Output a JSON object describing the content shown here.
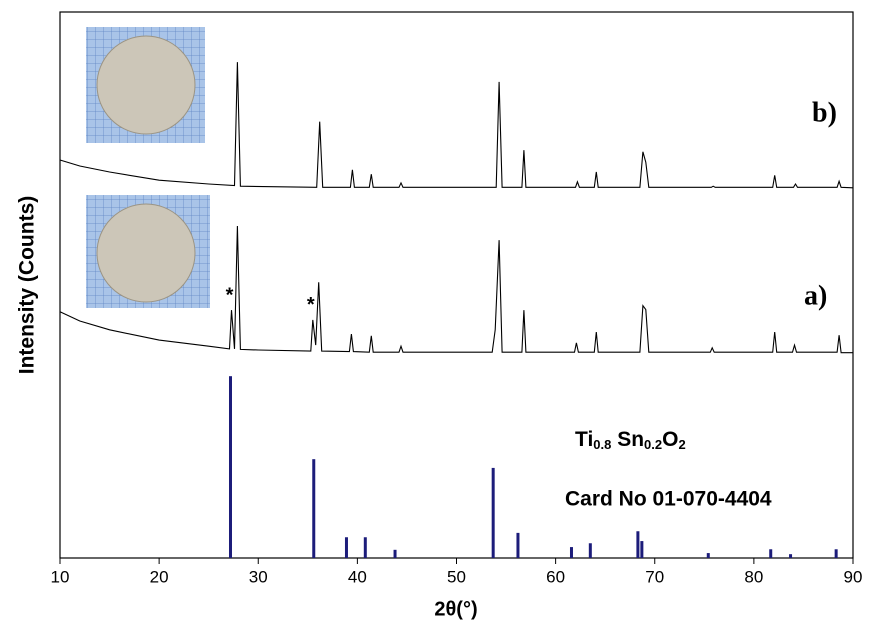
{
  "chart_data": {
    "type": "line",
    "y_label": "Intensity (Counts)",
    "x_label": "2θ(°)",
    "xlim": [
      10,
      90
    ],
    "xticks": [
      10,
      20,
      30,
      40,
      50,
      60,
      70,
      80,
      90
    ],
    "ylim": [
      0,
      100
    ],
    "series": [
      {
        "name": "b)",
        "color": "#000000",
        "x": [
          10,
          12,
          15,
          20,
          25,
          27.6,
          27.9,
          28.2,
          35.9,
          36.2,
          36.5,
          39.3,
          39.5,
          39.7,
          41.2,
          41.4,
          41.6,
          44.2,
          44.4,
          44.6,
          54.0,
          54.3,
          54.6,
          56.6,
          56.8,
          57.0,
          62.0,
          62.2,
          62.4,
          63.9,
          64.1,
          64.3,
          68.5,
          68.8,
          69.1,
          69.4,
          75.7,
          75.9,
          76.1,
          81.9,
          82.1,
          82.3,
          84.0,
          84.2,
          84.4,
          88.4,
          88.6,
          88.8,
          90
        ],
        "values": [
          72.9,
          71.8,
          70.7,
          69.2,
          68.5,
          68.2,
          90.8,
          68.1,
          67.9,
          79.9,
          67.9,
          67.9,
          71.1,
          67.9,
          67.9,
          70.3,
          67.9,
          67.9,
          68.7,
          67.9,
          67.9,
          87.2,
          67.9,
          67.9,
          74.7,
          67.9,
          67.9,
          68.9,
          67.9,
          67.9,
          70.7,
          67.9,
          67.9,
          74.4,
          72.5,
          67.9,
          67.9,
          68.1,
          67.9,
          67.9,
          70.1,
          67.9,
          67.9,
          68.5,
          67.9,
          67.9,
          69.0,
          67.9,
          67.8
        ]
      },
      {
        "name": "a)",
        "color": "#000000",
        "x": [
          10,
          12,
          15,
          20,
          25,
          27.1,
          27.3,
          27.6,
          27.9,
          28.2,
          30,
          35.3,
          35.5,
          35.8,
          36.1,
          36.4,
          39.2,
          39.4,
          39.6,
          41.2,
          41.4,
          41.6,
          44.2,
          44.4,
          44.6,
          53.6,
          53.9,
          54.3,
          54.6,
          56.6,
          56.8,
          57.0,
          61.9,
          62.1,
          62.3,
          63.9,
          64.1,
          64.3,
          68.5,
          68.8,
          69.1,
          69.4,
          75.6,
          75.8,
          76.0,
          81.9,
          82.1,
          82.3,
          83.9,
          84.1,
          84.3,
          88.4,
          88.6,
          88.8,
          90
        ],
        "values": [
          45.1,
          43.4,
          41.8,
          39.9,
          38.8,
          38.3,
          45.4,
          38.3,
          60.8,
          38.2,
          38.1,
          37.9,
          43.6,
          39.0,
          50.5,
          37.9,
          37.8,
          41.0,
          37.8,
          37.7,
          40.7,
          37.7,
          37.7,
          38.8,
          37.7,
          37.7,
          41.8,
          58.2,
          37.7,
          37.7,
          45.4,
          37.7,
          37.7,
          39.4,
          37.7,
          37.7,
          41.4,
          37.7,
          37.7,
          46.2,
          45.5,
          37.7,
          37.7,
          38.5,
          37.7,
          37.7,
          41.4,
          37.7,
          37.7,
          39.0,
          37.7,
          37.7,
          40.8,
          37.6,
          37.6
        ]
      }
    ],
    "reference": {
      "color": "#1c1c7a",
      "formula": [
        "Ti",
        "0.8",
        " Sn",
        "0.2",
        "O",
        "2"
      ],
      "card": "Card No 01-070-4404",
      "x": [
        27.2,
        35.6,
        38.9,
        40.8,
        43.8,
        53.7,
        56.2,
        61.6,
        63.5,
        68.3,
        68.7,
        75.4,
        81.7,
        83.7,
        88.3
      ],
      "values": [
        33.3,
        18.1,
        3.8,
        3.8,
        1.5,
        16.5,
        4.6,
        2.0,
        2.7,
        4.9,
        3.1,
        0.9,
        1.6,
        0.7,
        1.6
      ]
    },
    "annotations": [
      {
        "text": "*",
        "x": 27.3
      },
      {
        "text": "*",
        "x": 35.5
      }
    ]
  }
}
